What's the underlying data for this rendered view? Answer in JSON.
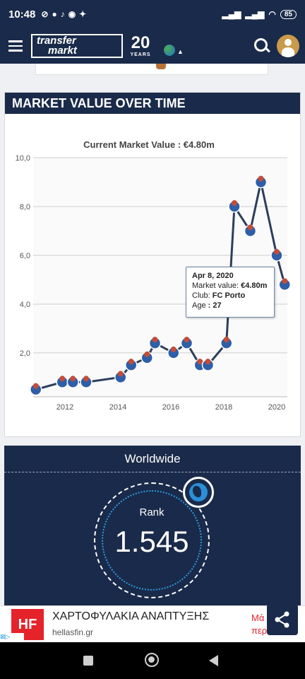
{
  "status_bar": {
    "time": "10:48",
    "battery": "85"
  },
  "header": {
    "logo_line1": "transfer",
    "logo_line2": "markt",
    "years_number": "20",
    "years_label": "YEARS"
  },
  "market_value": {
    "section_title": "MARKET VALUE OVER TIME",
    "chart_title": "Current Market Value : €4.80m",
    "tooltip": {
      "date": "Apr 8, 2020",
      "value_label": "Market value:",
      "value": "€4.80m",
      "club_label": "Club:",
      "club": "FC Porto",
      "age_label": "Age",
      "age": "27"
    }
  },
  "chart_data": {
    "type": "line",
    "title": "Current Market Value : €4.80m",
    "xlabel": "",
    "ylabel": "",
    "x_ticks": [
      "2012",
      "2014",
      "2016",
      "2018",
      "2020"
    ],
    "y_ticks": [
      "2,0",
      "4,0",
      "6,0",
      "8,0",
      "10,0"
    ],
    "xlim": [
      2010.8,
      2020.4
    ],
    "ylim": [
      0.2,
      10.0
    ],
    "grid": true,
    "series": [
      {
        "x": [
          2010.9,
          2011.9,
          2012.3,
          2012.8,
          2014.1,
          2014.5,
          2015.1,
          2015.4,
          2016.1,
          2016.6,
          2017.1,
          2017.4,
          2018.1,
          2018.4,
          2019.0,
          2019.4,
          2020.0,
          2020.3
        ],
        "y": [
          0.5,
          0.8,
          0.8,
          0.8,
          1.0,
          1.5,
          1.8,
          2.4,
          2.0,
          2.4,
          1.5,
          1.5,
          2.4,
          8.0,
          7.0,
          9.0,
          6.0,
          4.8
        ]
      }
    ]
  },
  "worldwide": {
    "title": "Worldwide",
    "rank_label": "Rank",
    "rank_value": "1.545"
  },
  "ad": {
    "logo": "HF",
    "title": "ΧΑΡΤΟΦΥΛΑΚΙΑ ΑΝΑΠΤΥΞΗΣ",
    "url": "hellasfin.gr",
    "cta_line1": "Μά",
    "cta_line2": "περ"
  },
  "colors": {
    "navy": "#1a2a4a",
    "line": "#2c3e5c",
    "accent": "#2a9be0",
    "ad_red": "#e5232a"
  }
}
